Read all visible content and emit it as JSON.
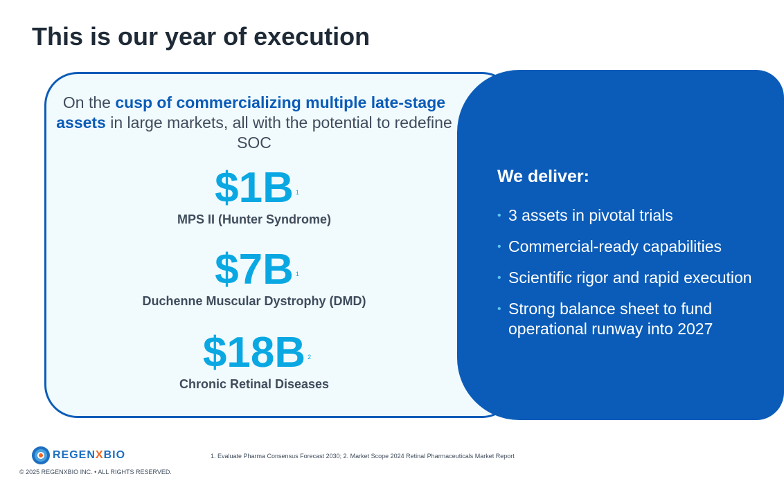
{
  "title": "This is our year of execution",
  "intro": {
    "pre": "On the ",
    "bold": "cusp of commercializing multiple late-stage assets",
    "post": " in large markets, all with the potential to redefine SOC"
  },
  "stats": [
    {
      "value": "$1B",
      "sup": "1",
      "label": "MPS II (Hunter Syndrome)"
    },
    {
      "value": "$7B",
      "sup": "1",
      "label": "Duchenne Muscular Dystrophy (DMD)"
    },
    {
      "value": "$18B",
      "sup": "2",
      "label": "Chronic Retinal Diseases"
    }
  ],
  "deliver": {
    "heading": "We deliver:",
    "items": [
      "3 assets in pivotal trials",
      "Commercial-ready capabilities",
      "Scientific rigor and rapid execution",
      "Strong balance sheet to fund operational runway into 2027"
    ]
  },
  "footer": {
    "logo_a": "REGEN",
    "logo_x": "X",
    "logo_b": "BIO",
    "copyright": "© 2025 REGENXBIO INC. • ALL RIGHTS RESERVED.",
    "footnote": "1. Evaluate Pharma Consensus Forecast 2030; 2. Market Scope 2024 Retinal Pharmaceuticals Market Report"
  }
}
